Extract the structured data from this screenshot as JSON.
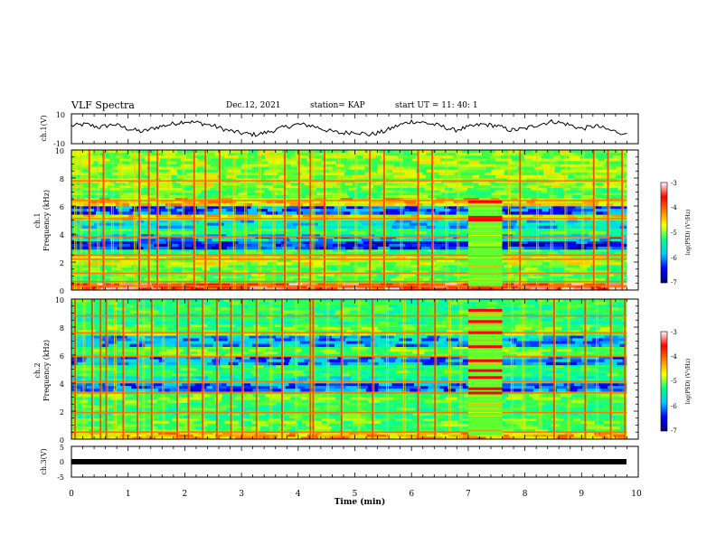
{
  "header": {
    "title": "VLF Spectra",
    "date": "Dec.12, 2021",
    "station": "station= KAP",
    "start": "start  UT =   11: 40: 1"
  },
  "panels": {
    "ch1_voltage": {
      "ylabel": "ch.1(V)",
      "ytick_labels": [
        "10",
        "-10"
      ]
    },
    "ch1_spectrogram": {
      "ylabel": [
        "ch.1",
        "Frequency  (kHz)"
      ],
      "ytick_labels": [
        "10",
        "8",
        "6",
        "4",
        "2",
        "0"
      ]
    },
    "ch2_spectrogram": {
      "ylabel": [
        "ch.2",
        "Frequency  (kHz)"
      ],
      "ytick_labels": [
        "10",
        "8",
        "6",
        "4",
        "2",
        "0"
      ]
    },
    "ch3_voltage": {
      "ylabel": "ch.3(V)",
      "ytick_labels": [
        "5",
        "0",
        "-5"
      ]
    }
  },
  "colorbar": {
    "label": "log(PSD) (V²/Hz)",
    "tick_labels": [
      "-3",
      "-4",
      "-5",
      "-6",
      "-7"
    ],
    "colors": [
      "#000080",
      "#0000ff",
      "#00c8ff",
      "#00ff80",
      "#ffff00",
      "#ff8000",
      "#ff0000",
      "#ffffff"
    ]
  },
  "xaxis": {
    "label": "Time  (min)",
    "tick_labels": [
      "0",
      "1",
      "2",
      "3",
      "4",
      "5",
      "6",
      "7",
      "8",
      "9",
      "10"
    ]
  },
  "chart_data": [
    {
      "type": "line",
      "panel": "ch.1(V)",
      "ylabel": "ch.1(V)",
      "xlim": [
        0,
        10
      ],
      "ylim": [
        -10,
        10
      ],
      "x": [
        0.0,
        0.25,
        0.5,
        0.75,
        1.0,
        1.25,
        1.5,
        1.75,
        2.0,
        2.25,
        2.5,
        2.75,
        3.0,
        3.25,
        3.5,
        3.75,
        4.0,
        4.25,
        4.5,
        4.75,
        5.0,
        5.25,
        5.5,
        5.75,
        6.0,
        6.25,
        6.5,
        6.75,
        7.0,
        7.25,
        7.5,
        7.75,
        8.0,
        8.25,
        8.5,
        8.75,
        9.0,
        9.25,
        9.5,
        9.75
      ],
      "y": [
        2,
        3,
        1,
        3,
        0,
        -2,
        1,
        3,
        5,
        4,
        2,
        -1,
        -3,
        -4,
        -2,
        1,
        3,
        2,
        -1,
        -3,
        -2,
        -4,
        -2,
        2,
        5,
        4,
        2,
        -1,
        1,
        3,
        2,
        -1,
        0,
        3,
        5,
        3,
        0,
        2,
        -1,
        -3
      ]
    },
    {
      "type": "heatmap",
      "panel": "ch.1",
      "ylabel": "Frequency (kHz)",
      "xlim": [
        0,
        9.8
      ],
      "ylim": [
        0,
        10
      ],
      "zlabel": "log(PSD)",
      "zlim": [
        -7,
        -3
      ],
      "bands": [
        {
          "f_khz": [
            0.0,
            0.5
          ],
          "level": -3.5
        },
        {
          "f_khz": [
            0.5,
            1.0
          ],
          "level": -5.0
        },
        {
          "f_khz": [
            1.0,
            1.8
          ],
          "level": -5.0
        },
        {
          "f_khz": [
            1.8,
            2.4
          ],
          "level": -4.6
        },
        {
          "f_khz": [
            2.4,
            2.9
          ],
          "level": -5.2
        },
        {
          "f_khz": [
            2.9,
            3.5
          ],
          "level": -6.5
        },
        {
          "f_khz": [
            3.5,
            4.0
          ],
          "level": -5.9
        },
        {
          "f_khz": [
            4.0,
            4.4
          ],
          "level": -5.2
        },
        {
          "f_khz": [
            4.4,
            5.0
          ],
          "level": -5.8
        },
        {
          "f_khz": [
            5.0,
            5.4
          ],
          "level": -4.4
        },
        {
          "f_khz": [
            5.4,
            6.0
          ],
          "level": -6.3
        },
        {
          "f_khz": [
            6.0,
            6.6
          ],
          "level": -4.3
        },
        {
          "f_khz": [
            6.6,
            7.3
          ],
          "level": -5.0
        },
        {
          "f_khz": [
            7.3,
            8.0
          ],
          "level": -4.7
        },
        {
          "f_khz": [
            8.0,
            9.0
          ],
          "level": -4.8
        },
        {
          "f_khz": [
            9.0,
            10.0
          ],
          "level": -4.8
        }
      ],
      "transmitter_lines_khz": [
        0.3,
        0.6,
        1.2,
        2.2,
        2.5,
        3.8,
        5.1,
        6.4,
        7.8
      ],
      "sferics_min": [
        0.05,
        0.15,
        0.3,
        0.45,
        0.55,
        0.7,
        0.85,
        1.1,
        1.18,
        1.35,
        1.5,
        1.7,
        1.95,
        2.15,
        2.35,
        2.6,
        2.85,
        3.05,
        3.3,
        3.55,
        3.75,
        4.0,
        4.2,
        4.25,
        4.45,
        4.7,
        5.0,
        5.25,
        5.5,
        5.8,
        6.1,
        6.35,
        6.6,
        6.8,
        7.7,
        7.9,
        8.2,
        8.45,
        8.7,
        9.0,
        9.2,
        9.45,
        9.7
      ],
      "anomaly": {
        "t_min": [
          7.0,
          7.6
        ],
        "f_khz": [
          0.3,
          6.4
        ],
        "lines_khz": [
          5.0,
          5.2,
          6.3
        ]
      }
    },
    {
      "type": "heatmap",
      "panel": "ch.2",
      "ylabel": "Frequency (kHz)",
      "xlim": [
        0,
        9.8
      ],
      "ylim": [
        0,
        10
      ],
      "zlabel": "log(PSD)",
      "zlim": [
        -7,
        -3
      ],
      "bands": [
        {
          "f_khz": [
            0.0,
            0.5
          ],
          "level": -4.2
        },
        {
          "f_khz": [
            0.5,
            1.5
          ],
          "level": -5.0
        },
        {
          "f_khz": [
            1.5,
            2.6
          ],
          "level": -5.2
        },
        {
          "f_khz": [
            2.6,
            3.4
          ],
          "level": -5.0
        },
        {
          "f_khz": [
            3.4,
            4.0
          ],
          "level": -6.3
        },
        {
          "f_khz": [
            4.0,
            4.5
          ],
          "level": -5.6
        },
        {
          "f_khz": [
            4.5,
            5.3
          ],
          "level": -5.2
        },
        {
          "f_khz": [
            5.3,
            5.9
          ],
          "level": -6.1
        },
        {
          "f_khz": [
            5.9,
            6.6
          ],
          "level": -5.0
        },
        {
          "f_khz": [
            6.6,
            7.4
          ],
          "level": -6.0
        },
        {
          "f_khz": [
            7.4,
            8.2
          ],
          "level": -5.0
        },
        {
          "f_khz": [
            8.2,
            9.0
          ],
          "level": -5.3
        },
        {
          "f_khz": [
            9.0,
            10.0
          ],
          "level": -5.2
        }
      ],
      "transmitter_lines_khz": [
        0.5,
        1.9,
        3.3,
        4.1,
        5.9,
        7.6,
        8.8
      ],
      "sferics_min": [
        0.05,
        0.2,
        0.35,
        0.5,
        0.6,
        0.75,
        0.9,
        1.15,
        1.25,
        1.4,
        1.6,
        1.85,
        2.05,
        2.3,
        2.55,
        2.8,
        3.0,
        3.25,
        3.5,
        3.7,
        3.95,
        4.2,
        4.25,
        4.5,
        4.75,
        5.05,
        5.3,
        5.55,
        5.85,
        6.1,
        6.4,
        6.65,
        6.85,
        7.75,
        7.95,
        8.25,
        8.5,
        8.75,
        9.05,
        9.25,
        9.5,
        9.75
      ],
      "anomaly": {
        "t_min": [
          7.0,
          7.6
        ],
        "f_khz": [
          0.3,
          9.3
        ],
        "lines_khz": [
          3.3,
          3.6,
          4.4,
          4.9,
          5.6,
          6.6,
          7.6,
          8.4,
          9.2
        ]
      }
    },
    {
      "type": "line",
      "panel": "ch.3(V)",
      "ylabel": "ch.3(V)",
      "xlim": [
        0,
        10
      ],
      "ylim": [
        -5,
        5
      ],
      "x": [
        0,
        9.8
      ],
      "y": [
        0,
        0
      ]
    }
  ]
}
